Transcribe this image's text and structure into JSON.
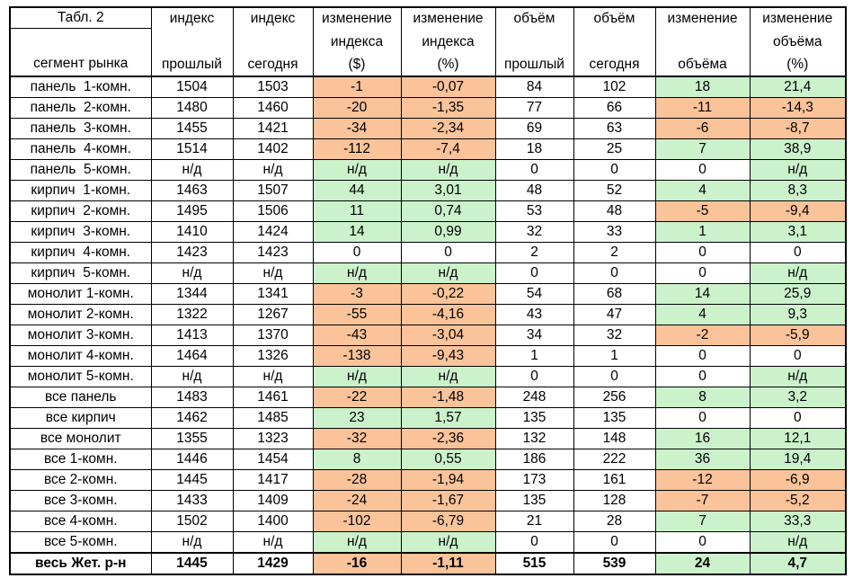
{
  "colors": {
    "negative_bg": "#FAC39A",
    "positive_bg": "#CCF2CC",
    "border": "#000000",
    "background": "#FFFFFF"
  },
  "chart_data": {
    "type": "table",
    "title": "Табл. 2",
    "row_header": "сегмент рынка",
    "column_headers": [
      [
        "индекс",
        "прошлый"
      ],
      [
        "индекс",
        "сегодня"
      ],
      [
        "изменение",
        "индекса",
        "($)"
      ],
      [
        "изменение",
        "индекса",
        "(%)"
      ],
      [
        "объём",
        "прошлый"
      ],
      [
        "объём",
        "сегодня"
      ],
      [
        "изменение",
        "объёма"
      ],
      [
        "изменение",
        "объёма",
        "(%)"
      ]
    ],
    "rows": [
      [
        "панель  1-комн.",
        "1504",
        "1503",
        "-1",
        "-0,07",
        "84",
        "102",
        "18",
        "21,4"
      ],
      [
        "панель  2-комн.",
        "1480",
        "1460",
        "-20",
        "-1,35",
        "77",
        "66",
        "-11",
        "-14,3"
      ],
      [
        "панель  3-комн.",
        "1455",
        "1421",
        "-34",
        "-2,34",
        "69",
        "63",
        "-6",
        "-8,7"
      ],
      [
        "панель  4-комн.",
        "1514",
        "1402",
        "-112",
        "-7,4",
        "18",
        "25",
        "7",
        "38,9"
      ],
      [
        "панель  5-комн.",
        "н/д",
        "н/д",
        "н/д",
        "н/д",
        "0",
        "0",
        "0",
        "н/д"
      ],
      [
        "кирпич  1-комн.",
        "1463",
        "1507",
        "44",
        "3,01",
        "48",
        "52",
        "4",
        "8,3"
      ],
      [
        "кирпич  2-комн.",
        "1495",
        "1506",
        "11",
        "0,74",
        "53",
        "48",
        "-5",
        "-9,4"
      ],
      [
        "кирпич  3-комн.",
        "1410",
        "1424",
        "14",
        "0,99",
        "32",
        "33",
        "1",
        "3,1"
      ],
      [
        "кирпич  4-комн.",
        "1423",
        "1423",
        "0",
        "0",
        "2",
        "2",
        "0",
        "0"
      ],
      [
        "кирпич  5-комн.",
        "н/д",
        "н/д",
        "н/д",
        "н/д",
        "0",
        "0",
        "0",
        "н/д"
      ],
      [
        "монолит 1-комн.",
        "1344",
        "1341",
        "-3",
        "-0,22",
        "54",
        "68",
        "14",
        "25,9"
      ],
      [
        "монолит 2-комн.",
        "1322",
        "1267",
        "-55",
        "-4,16",
        "43",
        "47",
        "4",
        "9,3"
      ],
      [
        "монолит 3-комн.",
        "1413",
        "1370",
        "-43",
        "-3,04",
        "34",
        "32",
        "-2",
        "-5,9"
      ],
      [
        "монолит 4-комн.",
        "1464",
        "1326",
        "-138",
        "-9,43",
        "1",
        "1",
        "0",
        "0"
      ],
      [
        "монолит 5-комн.",
        "н/д",
        "н/д",
        "н/д",
        "н/д",
        "0",
        "0",
        "0",
        "н/д"
      ],
      [
        "все панель",
        "1483",
        "1461",
        "-22",
        "-1,48",
        "248",
        "256",
        "8",
        "3,2"
      ],
      [
        "все кирпич",
        "1462",
        "1485",
        "23",
        "1,57",
        "135",
        "135",
        "0",
        "0"
      ],
      [
        "все монолит",
        "1355",
        "1323",
        "-32",
        "-2,36",
        "132",
        "148",
        "16",
        "12,1"
      ],
      [
        "все 1-комн.",
        "1446",
        "1454",
        "8",
        "0,55",
        "186",
        "222",
        "36",
        "19,4"
      ],
      [
        "все 2-комн.",
        "1445",
        "1417",
        "-28",
        "-1,94",
        "173",
        "161",
        "-12",
        "-6,9"
      ],
      [
        "все 3-комн.",
        "1433",
        "1409",
        "-24",
        "-1,67",
        "135",
        "128",
        "-7",
        "-5,2"
      ],
      [
        "все 4-комн.",
        "1502",
        "1400",
        "-102",
        "-6,79",
        "21",
        "28",
        "7",
        "33,3"
      ],
      [
        "все 5-комн.",
        "н/д",
        "н/д",
        "н/д",
        "н/д",
        "0",
        "0",
        "0",
        "н/д"
      ]
    ],
    "total_row": [
      "весь Жет. р-н",
      "1445",
      "1429",
      "-16",
      "-1,11",
      "515",
      "539",
      "24",
      "4,7"
    ],
    "color_rule": "change columns: negative=orange, positive or н/д=green, zero=white",
    "change_column_indices": [
      3,
      4,
      7,
      8
    ]
  }
}
